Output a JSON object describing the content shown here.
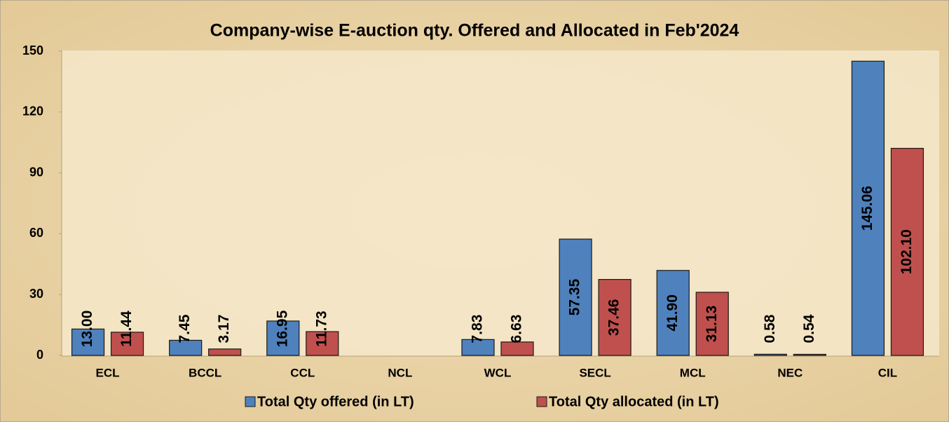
{
  "chart_data": {
    "type": "bar",
    "title": "Company-wise E-auction qty. Offered and Allocated in Feb'2024",
    "categories": [
      "ECL",
      "BCCL",
      "CCL",
      "NCL",
      "WCL",
      "SECL",
      "MCL",
      "NEC",
      "CIL"
    ],
    "series": [
      {
        "name": "Total Qty offered (in LT)",
        "color": "#4f81bd",
        "values": [
          13,
          7.45,
          16.95,
          null,
          7.83,
          57.35,
          41.9,
          0.58,
          145.06
        ],
        "value_labels": [
          "13.00",
          "7.45",
          "16.95",
          null,
          "7.83",
          "57.35",
          "41.90",
          "0.58",
          "145.06"
        ]
      },
      {
        "name": "Total Qty allocated (in LT)",
        "color": "#c0504d",
        "values": [
          11.44,
          3.17,
          11.73,
          null,
          6.63,
          37.46,
          31.13,
          0.54,
          102.1
        ],
        "value_labels": [
          "11.44",
          "3.17",
          "11.73",
          null,
          "6.63",
          "37.46",
          "31.13",
          "0.54",
          "102.10"
        ]
      }
    ],
    "ylim": [
      0,
      150
    ],
    "yticks": [
      0,
      30,
      60,
      90,
      120,
      150
    ],
    "grid": false,
    "legend": "bottom"
  }
}
